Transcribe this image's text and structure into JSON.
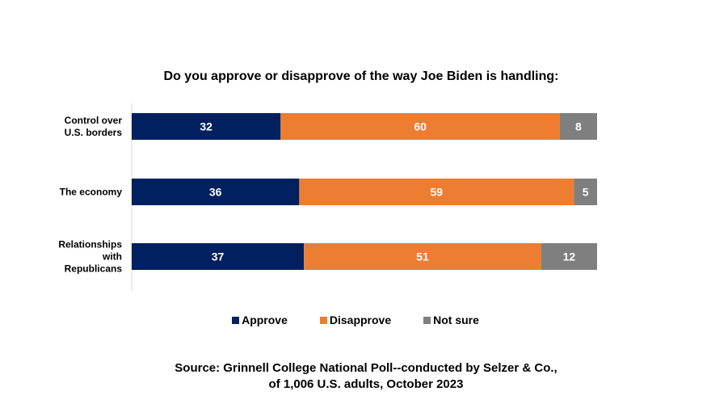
{
  "chart_data": {
    "type": "bar",
    "orientation": "horizontal",
    "stacked": true,
    "title": "Do you approve or disapprove of the way Joe Biden is handling:",
    "categories": [
      [
        "Control over",
        "U.S. borders"
      ],
      [
        "The economy"
      ],
      [
        "Relationships",
        "with",
        "Republicans"
      ]
    ],
    "series": [
      {
        "name": "Approve",
        "values": [
          32,
          36,
          37
        ],
        "color": "#002060"
      },
      {
        "name": "Disapprove",
        "values": [
          60,
          59,
          51
        ],
        "color": "#ED7D31"
      },
      {
        "name": "Not sure",
        "values": [
          8,
          5,
          12
        ],
        "color": "#7F7F7F"
      }
    ],
    "xlim": [
      0,
      100
    ],
    "grid": false,
    "legend_position": "bottom",
    "source": [
      "Source: Grinnell College National Poll--conducted by Selzer & Co.,",
      "of 1,006 U.S. adults, October 2023"
    ]
  }
}
